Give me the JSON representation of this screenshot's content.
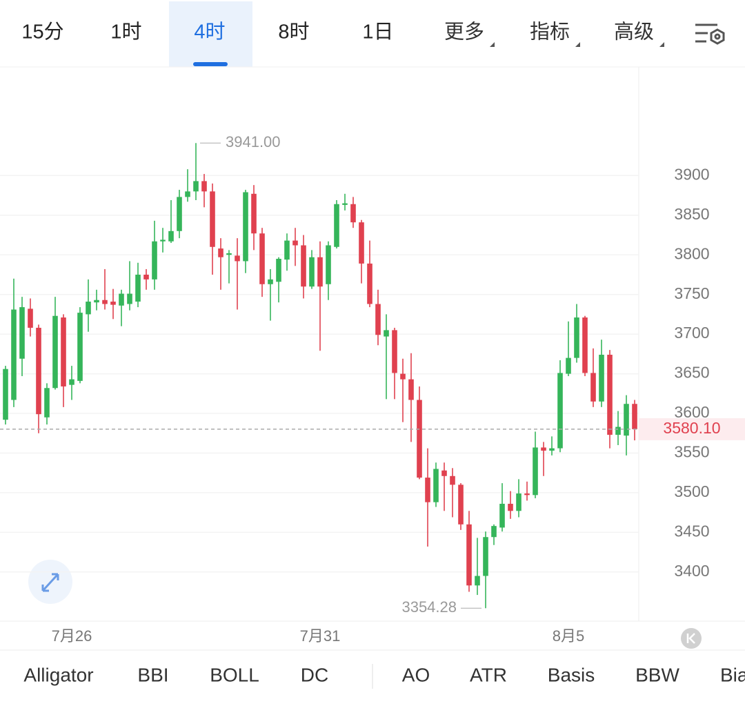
{
  "header": {
    "tabs": [
      "15分",
      "1时",
      "4时",
      "8时",
      "1日"
    ],
    "active_tab": 2,
    "menus": [
      "更多",
      "指标",
      "高级"
    ]
  },
  "chart_data": {
    "type": "candlestick",
    "categories": [
      null,
      null,
      null,
      null,
      null,
      null,
      null,
      null,
      "7月26",
      null,
      null,
      null,
      null,
      null,
      null,
      null,
      null,
      null,
      null,
      null,
      null,
      null,
      null,
      null,
      null,
      null,
      null,
      null,
      null,
      null,
      null,
      null,
      null,
      null,
      null,
      null,
      null,
      null,
      "7月31",
      null,
      null,
      null,
      null,
      null,
      null,
      null,
      null,
      null,
      null,
      null,
      null,
      null,
      null,
      null,
      null,
      null,
      null,
      null,
      null,
      null,
      null,
      null,
      null,
      null,
      null,
      null,
      null,
      null,
      "8月5",
      null,
      null,
      null,
      null,
      null,
      null,
      null,
      null
    ],
    "open": [
      3592,
      3617,
      3669,
      3732,
      3708,
      3595,
      3632,
      3721,
      3636,
      3641,
      3725,
      3740,
      3743,
      3741,
      3736,
      3738,
      3741,
      3775,
      3769,
      3817,
      3817,
      3830,
      3873,
      3880,
      3893,
      3880,
      3808,
      3800,
      3799,
      3792,
      3877,
      3827,
      3763,
      3766,
      3794,
      3818,
      3812,
      3760,
      3797,
      3763,
      3810,
      3863,
      3864,
      3841,
      3789,
      3738,
      3697,
      3705,
      3650,
      3643,
      3617,
      3519,
      3488,
      3528,
      3521,
      3510,
      3460,
      3383,
      3395,
      3444,
      3456,
      3486,
      3477,
      3499,
      3497,
      3557,
      3553,
      3556,
      3650,
      3670,
      3721,
      3651,
      3615,
      3674,
      3573,
      3572,
      3612
    ],
    "high": [
      3660,
      3770,
      3747,
      3745,
      3712,
      3638,
      3747,
      3725,
      3660,
      3734,
      3769,
      3756,
      3782,
      3757,
      3756,
      3792,
      3790,
      3782,
      3843,
      3834,
      3869,
      3882,
      3908,
      3941,
      3902,
      3890,
      3821,
      3806,
      3821,
      3882,
      3888,
      3834,
      3782,
      3797,
      3827,
      3834,
      3825,
      3806,
      3817,
      3817,
      3869,
      3877,
      3873,
      3844,
      3818,
      3756,
      3725,
      3708,
      3669,
      3676,
      3634,
      3556,
      3538,
      3538,
      3531,
      3512,
      3477,
      3443,
      3451,
      3460,
      3512,
      3502,
      3517,
      3514,
      3577,
      3564,
      3571,
      3667,
      3716,
      3738,
      3723,
      3682,
      3693,
      3680,
      3603,
      3623,
      3617
    ],
    "low": [
      3586,
      3608,
      3647,
      3697,
      3575,
      3586,
      3630,
      3608,
      3617,
      3638,
      3703,
      3730,
      3731,
      3719,
      3710,
      3730,
      3734,
      3756,
      3756,
      3803,
      3815,
      3821,
      3867,
      3869,
      3860,
      3775,
      3756,
      3764,
      3731,
      3777,
      3806,
      3747,
      3717,
      3740,
      3780,
      3786,
      3745,
      3757,
      3679,
      3743,
      3808,
      3856,
      3834,
      3764,
      3734,
      3686,
      3618,
      3618,
      3589,
      3564,
      3517,
      3432,
      3482,
      3477,
      3469,
      3453,
      3375,
      3371,
      3354.28,
      3434,
      3451,
      3467,
      3469,
      3490,
      3493,
      3521,
      3547,
      3551,
      3647,
      3664,
      3647,
      3608,
      3608,
      3556,
      3560,
      3547,
      3566
    ],
    "close": [
      3656,
      3731,
      3734,
      3708,
      3599,
      3632,
      3723,
      3634,
      3643,
      3727,
      3741,
      3743,
      3738,
      3737,
      3751,
      3751,
      3775,
      3769,
      3817,
      3819,
      3830,
      3873,
      3880,
      3893,
      3880,
      3810,
      3797,
      3802,
      3792,
      3879,
      3827,
      3763,
      3769,
      3795,
      3818,
      3812,
      3760,
      3797,
      3760,
      3812,
      3864,
      3865,
      3841,
      3789,
      3738,
      3699,
      3705,
      3651,
      3643,
      3617,
      3519,
      3488,
      3530,
      3521,
      3510,
      3460,
      3383,
      3395,
      3444,
      3458,
      3486,
      3477,
      3499,
      3497,
      3557,
      3553,
      3556,
      3651,
      3670,
      3721,
      3651,
      3615,
      3674,
      3573,
      3583,
      3612,
      3580.1
    ],
    "up_color": "#35b55a",
    "down_color": "#e0414f",
    "ylim": [
      3338,
      4037
    ],
    "yticks": [
      3400,
      3450,
      3500,
      3550,
      3600,
      3650,
      3700,
      3750,
      3800,
      3850,
      3900
    ],
    "grid": true,
    "annotations": [
      {
        "value": 3941,
        "label": "3941.00"
      },
      {
        "value": 3354.28,
        "label": "3354.28"
      }
    ],
    "last_price": {
      "value": 3580.1,
      "label": "3580.10"
    }
  },
  "indicators": {
    "main": [
      "Alligator",
      "BBI",
      "BOLL",
      "DC"
    ],
    "sub": [
      "AO",
      "ATR",
      "Basis",
      "BBW",
      "Bias"
    ]
  }
}
